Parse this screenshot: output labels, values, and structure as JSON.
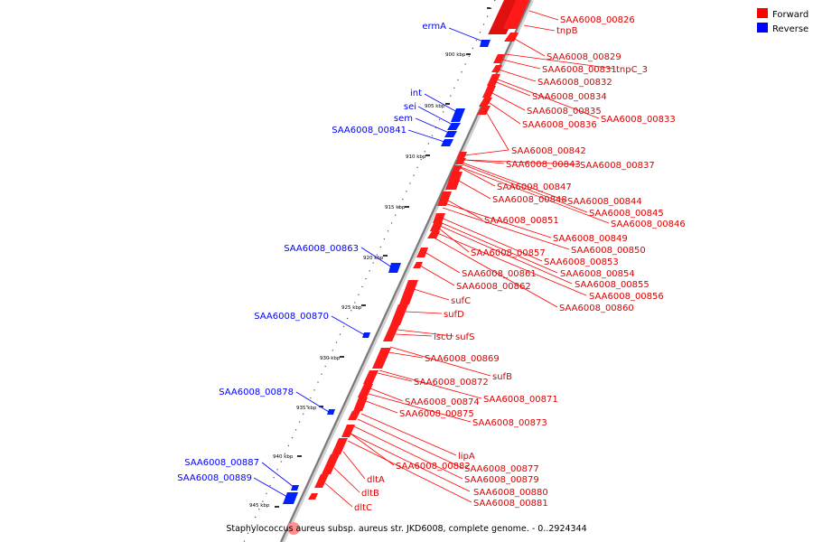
{
  "legend": {
    "items": [
      {
        "label": "Forward",
        "color": "#ff0000"
      },
      {
        "label": "Reverse",
        "color": "#0000ff"
      }
    ]
  },
  "caption": "Staphylococcus aureus subsp. aureus str. JKD6008, complete genome. - 0..2924344",
  "ticks": [
    "900 kbp",
    "905 kbp",
    "910 kbp",
    "915 kbp",
    "920 kbp",
    "925 kbp",
    "930 kbp",
    "935 kbp",
    "940 kbp",
    "945 kbp"
  ],
  "forward_labels": [
    "SAA6008_00826",
    "tnpB",
    "SAA6008_00829",
    "SAA6008_00831",
    "tnpC_3",
    "SAA6008_00832",
    "SAA6008_00834",
    "SAA6008_00835",
    "SAA6008_00833",
    "SAA6008_00836",
    "SAA6008_00842",
    "SAA6008_00843",
    "SAA6008_00837",
    "SAA6008_00847",
    "SAA6008_00848",
    "SAA6008_00844",
    "SAA6008_00845",
    "SAA6008_00846",
    "SAA6008_00851",
    "SAA6008_00849",
    "SAA6008_00850",
    "SAA6008_00857",
    "SAA6008_00853",
    "SAA6008_00861",
    "SAA6008_00854",
    "SAA6008_00855",
    "SAA6008_00862",
    "SAA6008_00856",
    "sufC",
    "SAA6008_00860",
    "sufD",
    "iscU",
    "sufS",
    "SAA6008_00869",
    "sufB",
    "SAA6008_00872",
    "SAA6008_00871",
    "SAA6008_00874",
    "SAA6008_00875",
    "SAA6008_00873",
    "lipA",
    "SAA6008_00882",
    "SAA6008_00877",
    "dltA",
    "SAA6008_00879",
    "dltB",
    "SAA6008_00880",
    "dltC",
    "SAA6008_00881"
  ],
  "reverse_labels": [
    "ermA",
    "int",
    "sei",
    "sem",
    "SAA6008_00841",
    "SAA6008_00863",
    "SAA6008_00870",
    "SAA6008_00878",
    "SAA6008_00887",
    "SAA6008_00889"
  ]
}
